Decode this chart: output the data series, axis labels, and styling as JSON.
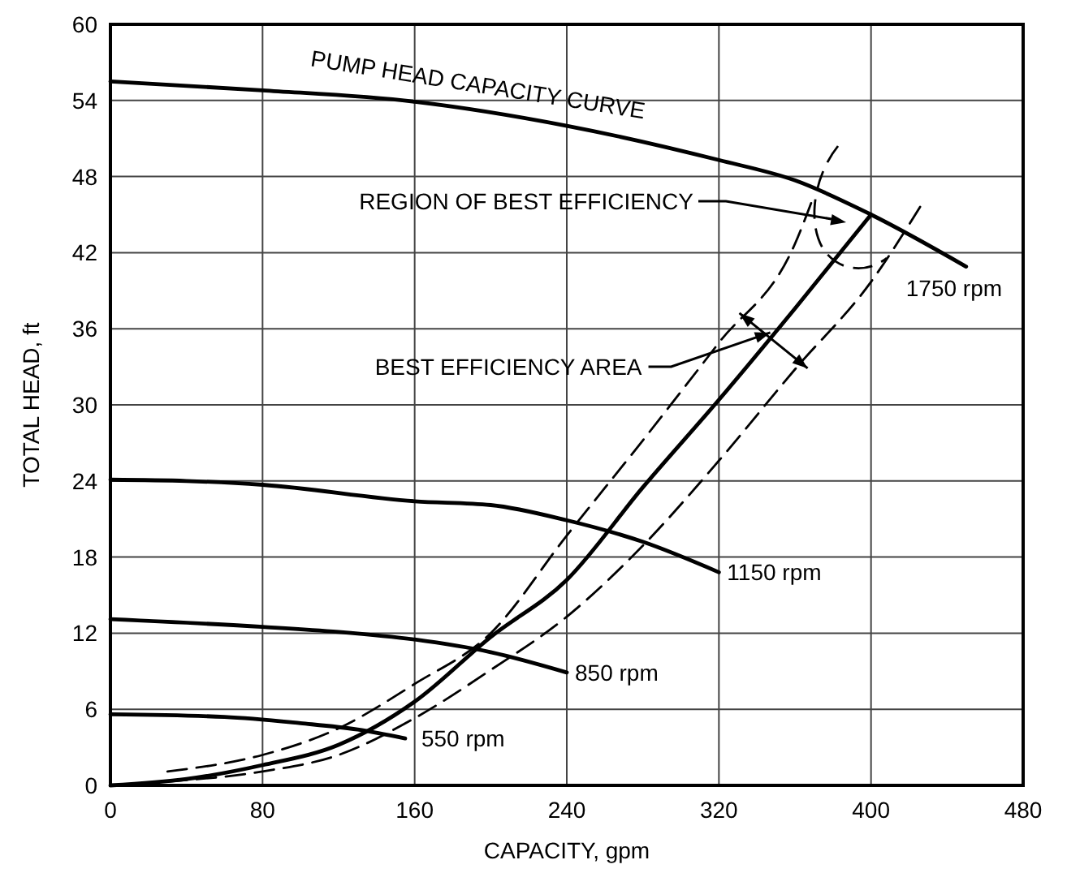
{
  "chart_data": {
    "type": "line",
    "xlabel": "CAPACITY, gpm",
    "ylabel": "TOTAL HEAD, ft",
    "xlim": [
      0,
      480
    ],
    "ylim": [
      0,
      60
    ],
    "xticks": [
      0,
      80,
      160,
      240,
      320,
      400,
      480
    ],
    "yticks": [
      0,
      6,
      12,
      18,
      24,
      30,
      36,
      42,
      48,
      54,
      60
    ],
    "grid": true,
    "marker": "none",
    "series": [
      {
        "name": "1750 rpm",
        "color": "#000000",
        "line_style": "solid",
        "x": [
          0,
          80,
          160,
          240,
          320,
          360,
          400,
          450
        ],
        "values": [
          55.5,
          54.8,
          53.9,
          52,
          49.3,
          47.7,
          45,
          40.9
        ]
      },
      {
        "name": "1150 rpm",
        "color": "#000000",
        "line_style": "solid",
        "x": [
          0,
          40,
          80,
          160,
          200,
          240,
          280,
          320
        ],
        "values": [
          24.1,
          24,
          23.7,
          22.4,
          22.1,
          20.9,
          19.2,
          16.8
        ]
      },
      {
        "name": "850 rpm",
        "color": "#000000",
        "line_style": "solid",
        "x": [
          0,
          80,
          120,
          160,
          200,
          240
        ],
        "values": [
          13.1,
          12.5,
          12.1,
          11.5,
          10.5,
          8.9
        ]
      },
      {
        "name": "550 rpm",
        "color": "#000000",
        "line_style": "solid",
        "x": [
          0,
          60,
          100,
          130,
          155
        ],
        "values": [
          5.6,
          5.4,
          4.9,
          4.4,
          3.7
        ]
      },
      {
        "color": "#000000",
        "line_style": "solid",
        "x": [
          0,
          40,
          80,
          120,
          160,
          200,
          240,
          280,
          320,
          360,
          400
        ],
        "values": [
          0,
          0.5,
          1.6,
          3.2,
          6.6,
          11.7,
          16.2,
          23.5,
          30.4,
          37.6,
          45
        ]
      },
      {
        "color": "#000000",
        "line_style": "dashed",
        "x": [
          30,
          80,
          120,
          160,
          200,
          240,
          280,
          320,
          360,
          370
        ],
        "values": [
          1.1,
          2.4,
          4.5,
          8,
          12,
          19.7,
          27.2,
          34.9,
          42.7,
          46.5
        ]
      },
      {
        "color": "#000000",
        "line_style": "dashed",
        "x": [
          30,
          80,
          120,
          160,
          200,
          240,
          280,
          320,
          360,
          400,
          427
        ],
        "values": [
          0.3,
          1.1,
          2.4,
          5.3,
          9.1,
          13.3,
          18.9,
          25.6,
          32.8,
          39.7,
          45.9
        ]
      }
    ],
    "annotations": [
      {
        "text": "PUMP HEAD CAPACITY CURVE",
        "x": 192,
        "y": 54
      },
      "REGION OF BEST EFFICIENCY",
      {
        "text": "BEST EFFICIENCY AREA",
        "x": 347,
        "y": 35.7
      }
    ]
  }
}
